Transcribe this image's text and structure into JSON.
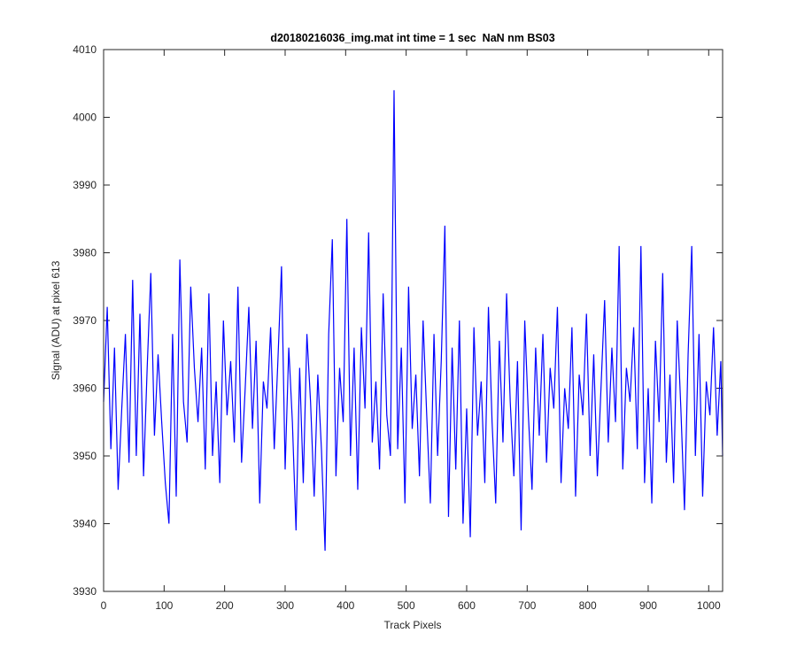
{
  "chart_data": {
    "type": "line",
    "title": "d20180216036_img.mat int time = 1 sec  NaN nm BS03",
    "xlabel": "Track Pixels",
    "ylabel": "Signal (ADU) at pixel 613",
    "color": "#0000ff",
    "xlim": [
      0,
      1023
    ],
    "ylim": [
      3930,
      4010
    ],
    "xticks": [
      0,
      100,
      200,
      300,
      400,
      500,
      600,
      700,
      800,
      900,
      1000
    ],
    "yticks": [
      3930,
      3940,
      3950,
      3960,
      3970,
      3980,
      3990,
      4000,
      4010
    ],
    "x": [
      0,
      6,
      12,
      18,
      24,
      30,
      36,
      42,
      48,
      54,
      60,
      66,
      72,
      78,
      84,
      90,
      96,
      102,
      108,
      114,
      120,
      126,
      132,
      138,
      144,
      150,
      156,
      162,
      168,
      174,
      180,
      186,
      192,
      198,
      204,
      210,
      216,
      222,
      228,
      234,
      240,
      246,
      252,
      258,
      264,
      270,
      276,
      282,
      288,
      294,
      300,
      306,
      312,
      318,
      324,
      330,
      336,
      342,
      348,
      354,
      360,
      366,
      372,
      378,
      384,
      390,
      396,
      402,
      408,
      414,
      420,
      426,
      432,
      438,
      444,
      450,
      456,
      462,
      468,
      474,
      480,
      486,
      492,
      498,
      504,
      510,
      516,
      522,
      528,
      534,
      540,
      546,
      552,
      558,
      564,
      570,
      576,
      582,
      588,
      594,
      600,
      606,
      612,
      618,
      624,
      630,
      636,
      642,
      648,
      654,
      660,
      666,
      672,
      678,
      684,
      690,
      696,
      702,
      708,
      714,
      720,
      726,
      732,
      738,
      744,
      750,
      756,
      762,
      768,
      774,
      780,
      786,
      792,
      798,
      804,
      810,
      816,
      822,
      828,
      834,
      840,
      846,
      852,
      858,
      864,
      870,
      876,
      882,
      888,
      894,
      900,
      906,
      912,
      918,
      924,
      930,
      936,
      942,
      948,
      954,
      960,
      966,
      972,
      978,
      984,
      990,
      996,
      1002,
      1008,
      1014,
      1020,
      1023
    ],
    "values": [
      3958,
      3972,
      3951,
      3966,
      3945,
      3957,
      3968,
      3949,
      3976,
      3950,
      3971,
      3947,
      3963,
      3977,
      3953,
      3965,
      3955,
      3946,
      3940,
      3968,
      3944,
      3979,
      3958,
      3952,
      3975,
      3963,
      3955,
      3966,
      3948,
      3974,
      3950,
      3961,
      3946,
      3970,
      3956,
      3964,
      3952,
      3975,
      3949,
      3960,
      3972,
      3954,
      3967,
      3943,
      3961,
      3957,
      3969,
      3951,
      3964,
      3978,
      3948,
      3966,
      3955,
      3939,
      3963,
      3946,
      3968,
      3958,
      3944,
      3962,
      3951,
      3936,
      3968,
      3982,
      3947,
      3963,
      3955,
      3985,
      3950,
      3966,
      3945,
      3969,
      3957,
      3983,
      3952,
      3961,
      3948,
      3974,
      3956,
      3950,
      4004,
      3951,
      3966,
      3943,
      3975,
      3954,
      3962,
      3947,
      3970,
      3956,
      3943,
      3968,
      3950,
      3964,
      3984,
      3941,
      3966,
      3948,
      3970,
      3940,
      3957,
      3938,
      3969,
      3953,
      3961,
      3946,
      3972,
      3955,
      3943,
      3967,
      3952,
      3974,
      3958,
      3947,
      3964,
      3939,
      3970,
      3956,
      3945,
      3966,
      3953,
      3968,
      3949,
      3963,
      3957,
      3972,
      3946,
      3960,
      3954,
      3969,
      3944,
      3962,
      3956,
      3971,
      3950,
      3965,
      3947,
      3960,
      3973,
      3952,
      3966,
      3955,
      3981,
      3948,
      3963,
      3958,
      3969,
      3951,
      3981,
      3946,
      3960,
      3943,
      3967,
      3955,
      3977,
      3949,
      3962,
      3946,
      3970,
      3957,
      3942,
      3965,
      3981,
      3950,
      3968,
      3944,
      3961,
      3956,
      3969,
      3953,
      3964,
      3950
    ]
  }
}
